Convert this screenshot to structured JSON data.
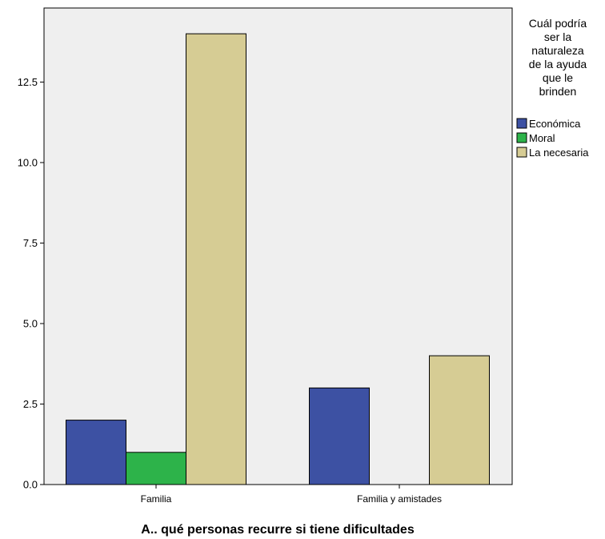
{
  "chart_data": {
    "type": "bar",
    "title": "",
    "xlabel": "A.. qué personas recurre si tiene dificultades",
    "ylabel": "",
    "categories": [
      "Familia",
      "Familia y amistades"
    ],
    "series": [
      {
        "name": "Económica",
        "values": [
          2,
          3
        ],
        "color": "#3d51a3"
      },
      {
        "name": "Moral",
        "values": [
          1,
          0
        ],
        "color": "#2db34a"
      },
      {
        "name": "La necesaria",
        "values": [
          14,
          4
        ],
        "color": "#d6cc94"
      }
    ],
    "ylim": [
      0,
      14.8
    ],
    "yticks": [
      0.0,
      2.5,
      5.0,
      7.5,
      10.0,
      12.5
    ],
    "ytick_labels": [
      "0.0",
      "2.5",
      "5.0",
      "7.5",
      "10.0",
      "12.5"
    ],
    "grid": false,
    "plot_background": "#efefef",
    "legend": {
      "title_lines": [
        "Cuál podría",
        "ser la",
        "naturaleza",
        "de la ayuda",
        "que le",
        "brinden"
      ],
      "placement": "right"
    }
  }
}
